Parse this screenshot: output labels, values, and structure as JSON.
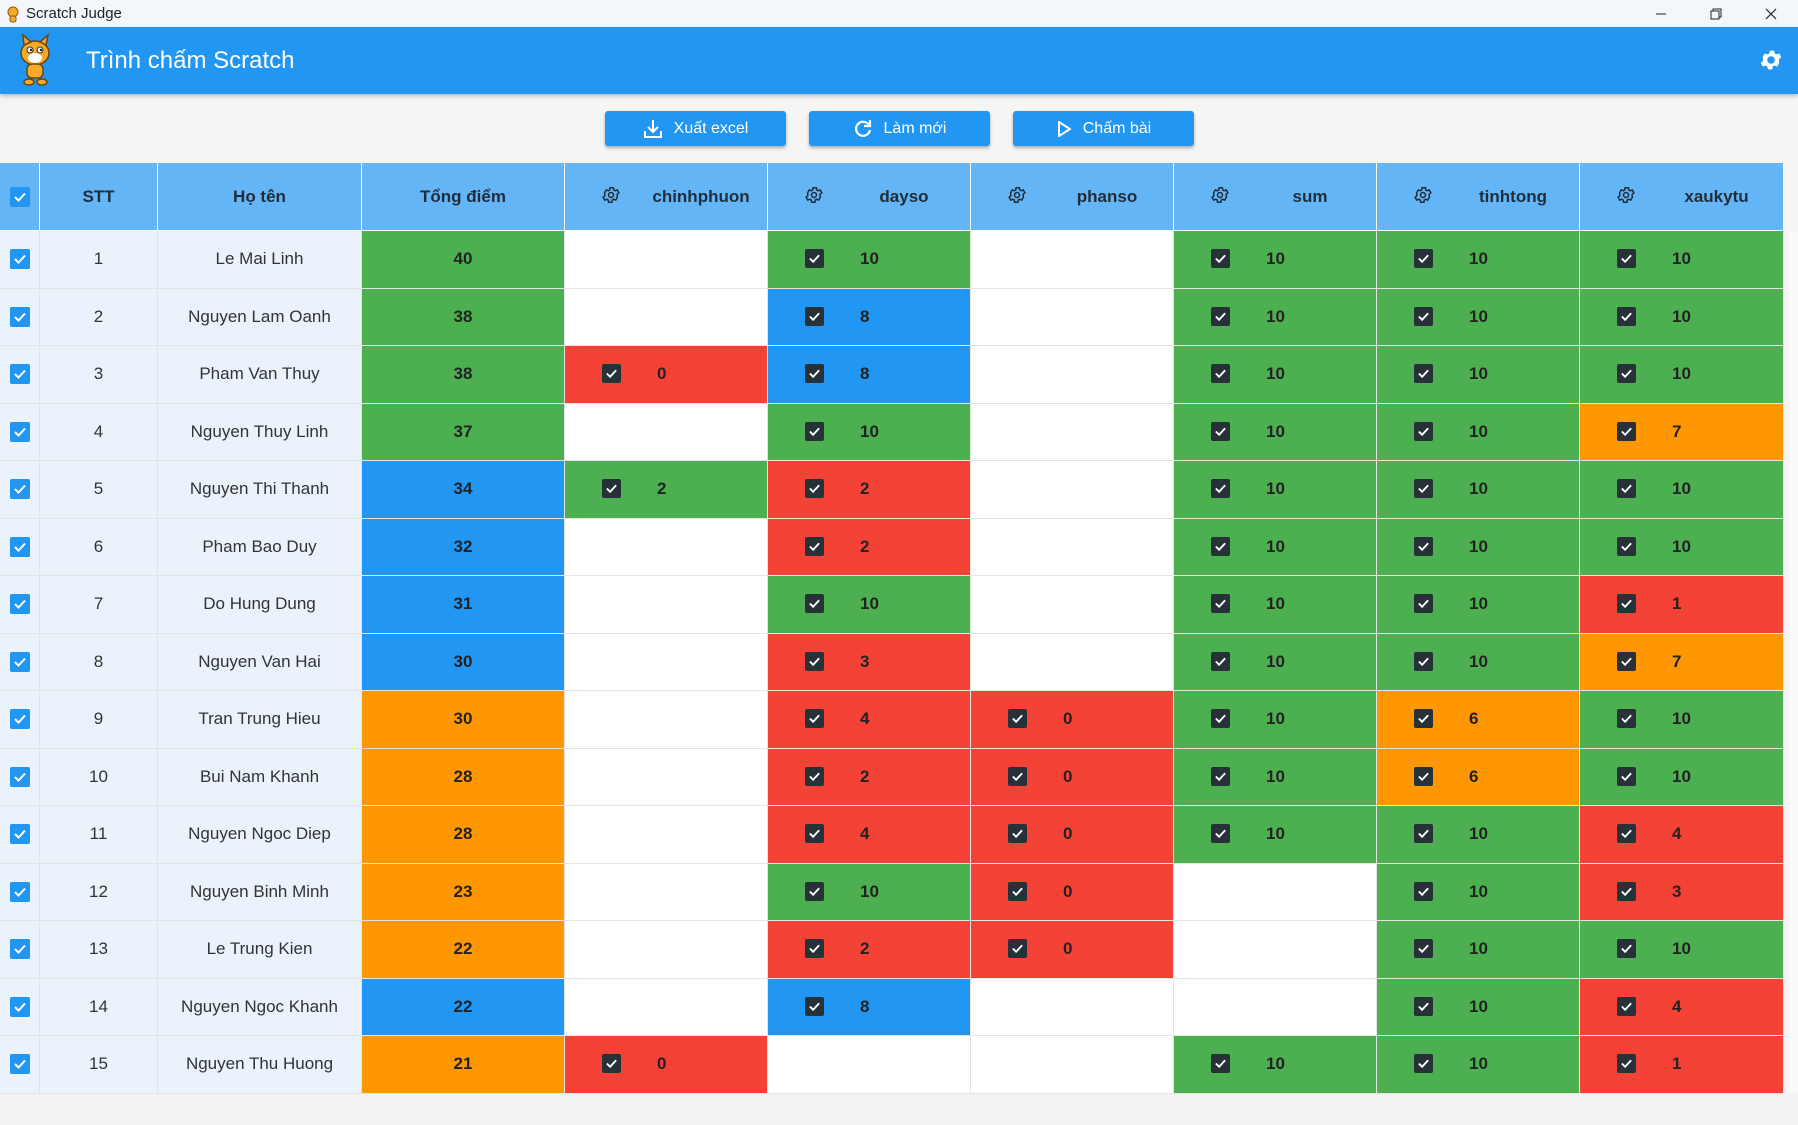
{
  "window": {
    "title": "Scratch Judge"
  },
  "appbar": {
    "title": "Trình chấm Scratch"
  },
  "toolbar": {
    "export_label": "Xuất excel",
    "refresh_label": "Làm mới",
    "grade_label": "Chấm bài"
  },
  "table": {
    "headers": {
      "stt": "STT",
      "name": "Họ tên",
      "total": "Tổng điểm",
      "tasks": [
        "chinhphuon",
        "dayso",
        "phanso",
        "sum",
        "tinhtong",
        "xaukytu"
      ]
    },
    "rows": [
      {
        "stt": "1",
        "name": "Le Mai Linh",
        "total": "40",
        "total_color": "green",
        "scores": [
          [
            "",
            ""
          ],
          [
            "10",
            "green"
          ],
          [
            "",
            ""
          ],
          [
            "10",
            "green"
          ],
          [
            "10",
            "green"
          ],
          [
            "10",
            "green"
          ]
        ]
      },
      {
        "stt": "2",
        "name": "Nguyen Lam Oanh",
        "total": "38",
        "total_color": "green",
        "scores": [
          [
            "",
            ""
          ],
          [
            "8",
            "blue"
          ],
          [
            "",
            ""
          ],
          [
            "10",
            "green"
          ],
          [
            "10",
            "green"
          ],
          [
            "10",
            "green"
          ]
        ]
      },
      {
        "stt": "3",
        "name": "Pham Van Thuy",
        "total": "38",
        "total_color": "green",
        "scores": [
          [
            "0",
            "red"
          ],
          [
            "8",
            "blue"
          ],
          [
            "",
            ""
          ],
          [
            "10",
            "green"
          ],
          [
            "10",
            "green"
          ],
          [
            "10",
            "green"
          ]
        ]
      },
      {
        "stt": "4",
        "name": "Nguyen Thuy Linh",
        "total": "37",
        "total_color": "green",
        "scores": [
          [
            "",
            ""
          ],
          [
            "10",
            "green"
          ],
          [
            "",
            ""
          ],
          [
            "10",
            "green"
          ],
          [
            "10",
            "green"
          ],
          [
            "7",
            "orange"
          ]
        ]
      },
      {
        "stt": "5",
        "name": "Nguyen Thi Thanh",
        "total": "34",
        "total_color": "blue",
        "scores": [
          [
            "2",
            "green"
          ],
          [
            "2",
            "red"
          ],
          [
            "",
            ""
          ],
          [
            "10",
            "green"
          ],
          [
            "10",
            "green"
          ],
          [
            "10",
            "green"
          ]
        ]
      },
      {
        "stt": "6",
        "name": "Pham Bao Duy",
        "total": "32",
        "total_color": "blue",
        "scores": [
          [
            "",
            ""
          ],
          [
            "2",
            "red"
          ],
          [
            "",
            ""
          ],
          [
            "10",
            "green"
          ],
          [
            "10",
            "green"
          ],
          [
            "10",
            "green"
          ]
        ]
      },
      {
        "stt": "7",
        "name": "Do Hung Dung",
        "total": "31",
        "total_color": "blue",
        "scores": [
          [
            "",
            ""
          ],
          [
            "10",
            "green"
          ],
          [
            "",
            ""
          ],
          [
            "10",
            "green"
          ],
          [
            "10",
            "green"
          ],
          [
            "1",
            "red"
          ]
        ]
      },
      {
        "stt": "8",
        "name": "Nguyen Van Hai",
        "total": "30",
        "total_color": "blue",
        "scores": [
          [
            "",
            ""
          ],
          [
            "3",
            "red"
          ],
          [
            "",
            ""
          ],
          [
            "10",
            "green"
          ],
          [
            "10",
            "green"
          ],
          [
            "7",
            "orange"
          ]
        ]
      },
      {
        "stt": "9",
        "name": "Tran Trung Hieu",
        "total": "30",
        "total_color": "orange",
        "scores": [
          [
            "",
            ""
          ],
          [
            "4",
            "red"
          ],
          [
            "0",
            "red"
          ],
          [
            "10",
            "green"
          ],
          [
            "6",
            "orange"
          ],
          [
            "10",
            "green"
          ]
        ]
      },
      {
        "stt": "10",
        "name": "Bui Nam Khanh",
        "total": "28",
        "total_color": "orange",
        "scores": [
          [
            "",
            ""
          ],
          [
            "2",
            "red"
          ],
          [
            "0",
            "red"
          ],
          [
            "10",
            "green"
          ],
          [
            "6",
            "orange"
          ],
          [
            "10",
            "green"
          ]
        ]
      },
      {
        "stt": "11",
        "name": "Nguyen Ngoc Diep",
        "total": "28",
        "total_color": "orange",
        "scores": [
          [
            "",
            ""
          ],
          [
            "4",
            "red"
          ],
          [
            "0",
            "red"
          ],
          [
            "10",
            "green"
          ],
          [
            "10",
            "green"
          ],
          [
            "4",
            "red"
          ]
        ]
      },
      {
        "stt": "12",
        "name": "Nguyen Binh Minh",
        "total": "23",
        "total_color": "orange",
        "scores": [
          [
            "",
            ""
          ],
          [
            "10",
            "green"
          ],
          [
            "0",
            "red"
          ],
          [
            "",
            ""
          ],
          [
            "10",
            "green"
          ],
          [
            "3",
            "red"
          ]
        ]
      },
      {
        "stt": "13",
        "name": "Le Trung Kien",
        "total": "22",
        "total_color": "orange",
        "scores": [
          [
            "",
            ""
          ],
          [
            "2",
            "red"
          ],
          [
            "0",
            "red"
          ],
          [
            "",
            ""
          ],
          [
            "10",
            "green"
          ],
          [
            "10",
            "green"
          ]
        ]
      },
      {
        "stt": "14",
        "name": "Nguyen Ngoc Khanh",
        "total": "22",
        "total_color": "blue",
        "scores": [
          [
            "",
            ""
          ],
          [
            "8",
            "blue"
          ],
          [
            "",
            ""
          ],
          [
            "",
            ""
          ],
          [
            "10",
            "green"
          ],
          [
            "4",
            "red"
          ]
        ]
      },
      {
        "stt": "15",
        "name": "Nguyen Thu Huong",
        "total": "21",
        "total_color": "orange",
        "scores": [
          [
            "0",
            "red"
          ],
          [
            "",
            ""
          ],
          [
            "",
            ""
          ],
          [
            "10",
            "green"
          ],
          [
            "10",
            "green"
          ],
          [
            "1",
            "red"
          ]
        ]
      }
    ]
  },
  "colors": {
    "accent": "#2196f3",
    "header": "#64b5f6",
    "green": "#4caf50",
    "blue": "#2196f3",
    "red": "#f44336",
    "orange": "#ff9800"
  }
}
